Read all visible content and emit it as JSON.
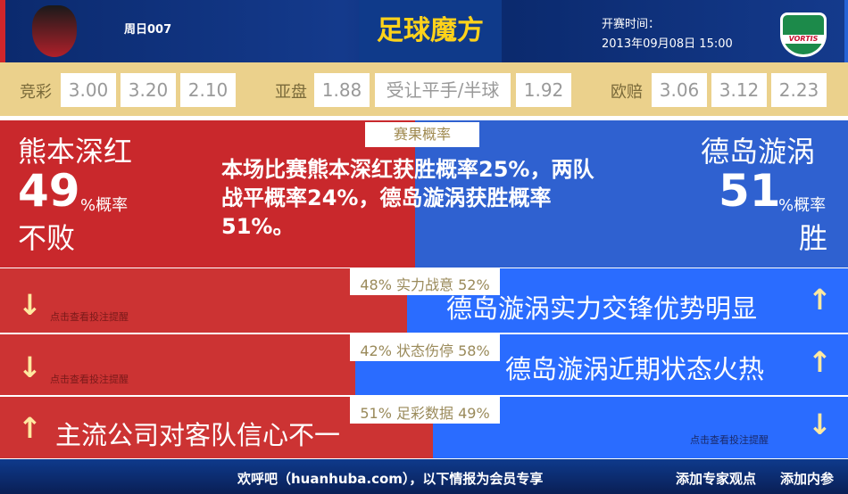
{
  "header": {
    "round": "周日007",
    "brand": "足球魔方",
    "kickoff_label": "开赛时间：",
    "kickoff_time": "2013年09月08日 15:00",
    "home_logo_text": "",
    "away_logo_text": "VORTIS"
  },
  "odds": {
    "jc_label": "竞彩",
    "jc": [
      "3.00",
      "3.20",
      "2.10"
    ],
    "asia_label": "亚盘",
    "asia": [
      "1.88",
      "受让平手/半球",
      "1.92"
    ],
    "euro_label": "欧赔",
    "euro": [
      "3.06",
      "3.12",
      "2.23"
    ]
  },
  "result": {
    "tag": "赛果概率",
    "home": "熊本深红",
    "home_pct": "49",
    "home_pct_unit": "%概率",
    "home_outcome": "不败",
    "away": "德岛漩涡",
    "away_pct": "51",
    "away_pct_unit": "%概率",
    "away_outcome": "胜",
    "summary": "本场比赛熊本深红获胜概率25%，两队战平概率24%，德岛漩涡获胜概率51%。"
  },
  "rows": [
    {
      "tag": "48% 实力战意 52%",
      "home_share": 48,
      "hint": "点击查看投注提醒",
      "text": "德岛漩涡实力交锋优势明显"
    },
    {
      "tag": "42% 状态伤停 58%",
      "home_share": 42,
      "hint": "点击查看投注提醒",
      "text": "德岛漩涡近期状态火热"
    },
    {
      "tag": "51% 足彩数据 49%",
      "home_share": 51,
      "hint": "点击查看投注提醒",
      "text": "主流公司对客队信心不一"
    }
  ],
  "footer": {
    "notice": "欢呼吧（huanhuba.com），以下情报为会员专享",
    "add_expert": "添加专家观点",
    "add_inside": "添加内参"
  },
  "colors": {
    "home": "#c9282c",
    "away": "#2f61d0",
    "accent": "#ebd18c"
  }
}
